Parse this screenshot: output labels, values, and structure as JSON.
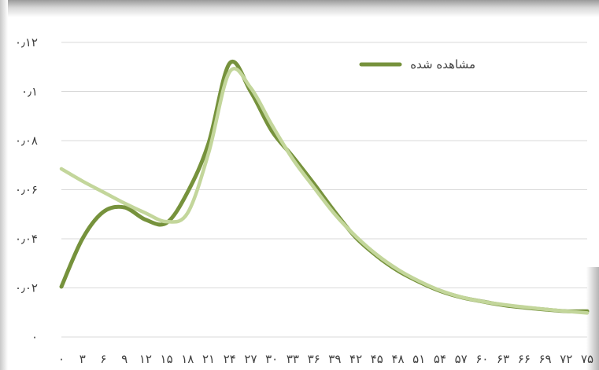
{
  "chart_data": {
    "type": "line",
    "title": "",
    "xlabel": "",
    "ylabel": "",
    "x": [
      0,
      3,
      6,
      9,
      12,
      15,
      18,
      21,
      24,
      27,
      30,
      33,
      36,
      39,
      42,
      45,
      48,
      51,
      54,
      57,
      60,
      63,
      66,
      69,
      72,
      75
    ],
    "x_tick_labels": [
      "۰",
      "۳",
      "۶",
      "۹",
      "۱۲",
      "۱۵",
      "۱۸",
      "۲۱",
      "۲۴",
      "۲۷",
      "۳۰",
      "۳۳",
      "۳۶",
      "۳۹",
      "۴۲",
      "۴۵",
      "۴۸",
      "۵۱",
      "۵۴",
      "۵۷",
      "۶۰",
      "۶۳",
      "۶۶",
      "۶۹",
      "۷۲",
      "۷۵"
    ],
    "y_tick_values": [
      0,
      0.02,
      0.04,
      0.06,
      0.08,
      0.1,
      0.12
    ],
    "y_tick_labels": [
      "۰",
      "۰٫۰۲",
      "۰٫۰۴",
      "۰٫۰۶",
      "۰٫۰۸",
      "۰٫۱",
      "۰٫۱۲"
    ],
    "ylim": [
      0,
      0.12
    ],
    "xlim": [
      0,
      75
    ],
    "grid": "horizontal",
    "legend_position": "top-right",
    "series": [
      {
        "name": "مشاهده شده",
        "color": "#76923c",
        "values": [
          0.0205,
          0.04,
          0.051,
          0.0528,
          0.0478,
          0.0465,
          0.059,
          0.079,
          0.1115,
          0.1,
          0.084,
          0.0735,
          0.0625,
          0.051,
          0.0405,
          0.033,
          0.027,
          0.0225,
          0.0188,
          0.0162,
          0.0145,
          0.013,
          0.012,
          0.0112,
          0.0105,
          0.0105
        ]
      },
      {
        "name": "",
        "color": "#c3d69b",
        "values": [
          0.0685,
          0.0635,
          0.059,
          0.0545,
          0.0505,
          0.047,
          0.0505,
          0.075,
          0.108,
          0.1015,
          0.0865,
          0.0725,
          0.061,
          0.05,
          0.041,
          0.0335,
          0.0275,
          0.0228,
          0.019,
          0.0163,
          0.0145,
          0.0132,
          0.0122,
          0.0113,
          0.0105,
          0.0098
        ]
      }
    ]
  }
}
